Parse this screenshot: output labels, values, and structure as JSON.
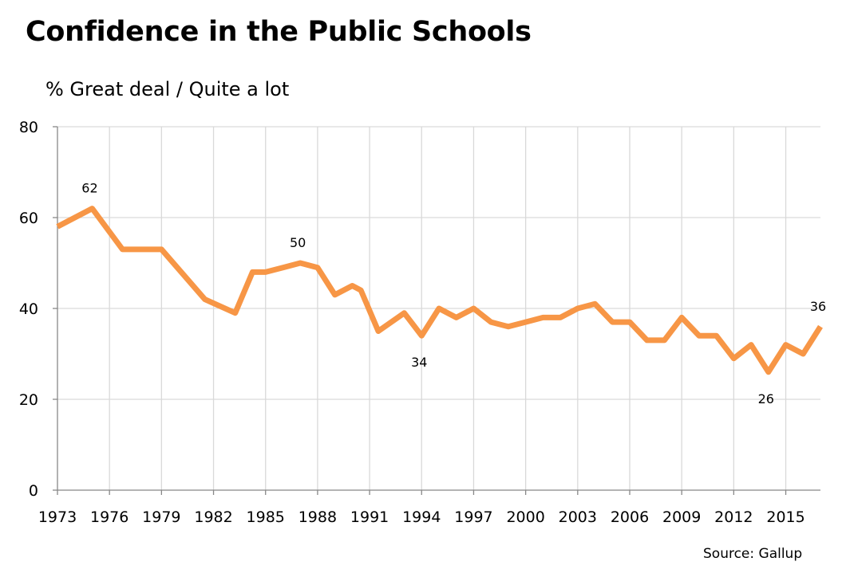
{
  "chart_data": {
    "type": "line",
    "title": "Confidence in the Public Schools",
    "subtitle": "% Great deal / Quite a lot",
    "source": "Source: Gallup",
    "xlabel": "",
    "ylabel": "",
    "ylim": [
      0,
      80
    ],
    "yticks": [
      0,
      20,
      40,
      60,
      80
    ],
    "xlim": [
      1973,
      2017
    ],
    "xticks": [
      1973,
      1976,
      1979,
      1982,
      1985,
      1988,
      1991,
      1994,
      1997,
      2000,
      2003,
      2006,
      2009,
      2012,
      2015
    ],
    "grid": true,
    "line_color": "#F79646",
    "x": [
      1973,
      1975,
      1976.75,
      1979,
      1981.5,
      1983.25,
      1984.25,
      1985,
      1986,
      1987,
      1988,
      1989,
      1990,
      1990.5,
      1991.5,
      1993,
      1994,
      1995,
      1996,
      1997,
      1998,
      1999,
      2000,
      2001,
      2002,
      2003,
      2004,
      2005,
      2006,
      2007,
      2008,
      2009,
      2010,
      2011,
      2012,
      2013,
      2014,
      2015,
      2016,
      2017
    ],
    "values": [
      58,
      62,
      53,
      53,
      42,
      39,
      48,
      48,
      49,
      50,
      49,
      43,
      45,
      44,
      35,
      39,
      34,
      40,
      38,
      40,
      37,
      36,
      37,
      38,
      38,
      40,
      41,
      37,
      37,
      33,
      33,
      38,
      34,
      34,
      29,
      32,
      26,
      32,
      30,
      36
    ],
    "annotations": [
      {
        "x": 1975,
        "y": 62,
        "text": "62",
        "position": "above"
      },
      {
        "x": 1987,
        "y": 50,
        "text": "50",
        "position": "above"
      },
      {
        "x": 1994,
        "y": 34,
        "text": "34",
        "position": "below"
      },
      {
        "x": 2014,
        "y": 26,
        "text": "26",
        "position": "below"
      },
      {
        "x": 2017,
        "y": 36,
        "text": "36",
        "position": "above"
      }
    ]
  }
}
